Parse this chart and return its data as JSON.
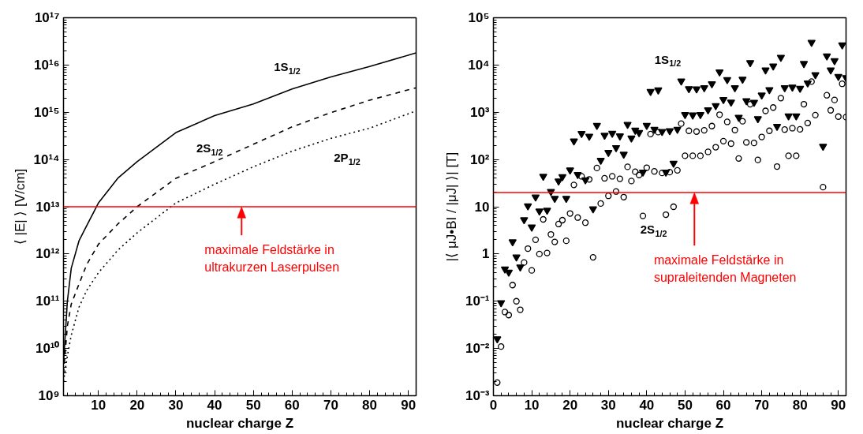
{
  "chart_data": [
    {
      "type": "line",
      "xlabel": "nuclear charge Z",
      "ylabel": "⟨ |E| ⟩ [V/cm]",
      "log": "y",
      "xlim": [
        1,
        92
      ],
      "ylim": [
        1000000000.0,
        1e+17
      ],
      "xticks": [
        10,
        20,
        30,
        40,
        50,
        60,
        70,
        80,
        90
      ],
      "yticks": [
        {
          "value": 1000000000.0,
          "label": "10⁹"
        },
        {
          "value": 10000000000.0,
          "label": "10¹⁰"
        },
        {
          "value": 100000000000.0,
          "label": "10¹¹"
        },
        {
          "value": 1000000000000.0,
          "label": "10¹²"
        },
        {
          "value": 10000000000000.0,
          "label": "10¹³"
        },
        {
          "value": 100000000000000.0,
          "label": "10¹⁴"
        },
        {
          "value": 1000000000000000.0,
          "label": "10¹⁵"
        },
        {
          "value": 1e+16,
          "label": "10¹⁶"
        },
        {
          "value": 1e+17,
          "label": "10¹⁷"
        }
      ],
      "x": [
        1,
        2,
        3,
        5,
        7,
        10,
        15,
        20,
        30,
        40,
        50,
        60,
        70,
        80,
        92
      ],
      "series": [
        {
          "name": "1S$_{1/2}$",
          "color": "#000000",
          "line_style": "solid",
          "values": [
            5000000000.0,
            100000000000.0,
            500000000000.0,
            1900000000000.0,
            4000000000000.0,
            12000000000000.0,
            40000000000000.0,
            90000000000000.0,
            370000000000000.0,
            850000000000000.0,
            1500000000000000.0,
            3100000000000000.0,
            5600000000000000.0,
            9300000000000000.0,
            1.8e+16
          ]
        },
        {
          "name": "2S$_{1/2}$",
          "color": "#000000",
          "line_style": "dashed",
          "values": [
            3000000000.0,
            30000000000.0,
            87000000000.0,
            230000000000.0,
            600000000000.0,
            1600000000000.0,
            4300000000000.0,
            10000000000000.0,
            40000000000000.0,
            90000000000000.0,
            210000000000000.0,
            490000000000000.0,
            980000000000000.0,
            1800000000000000.0,
            3300000000000000.0
          ]
        },
        {
          "name": "2P$_{1/2}$",
          "color": "#000000",
          "line_style": "dotted",
          "values": [
            2000000000.0,
            7000000000.0,
            19000000000.0,
            75000000000.0,
            170000000000.0,
            400000000000.0,
            1200000000000.0,
            2800000000000.0,
            12000000000000.0,
            30000000000000.0,
            70000000000000.0,
            150000000000000.0,
            280000000000000.0,
            460000000000000.0,
            1070000000000000.0
          ]
        }
      ],
      "ref_lines": [
        {
          "axis": "y",
          "value": 10000000000000.0,
          "label": "maximale Feldstärke in\nultrakurzen Laserpulsen",
          "color": "#ff0000"
        }
      ],
      "grid": false
    },
    {
      "type": "scatter",
      "xlabel": "nuclear charge Z",
      "ylabel": "|⟨ μJ•BI / |μJ| ⟩| [T]",
      "log": "y",
      "xlim": [
        0,
        92
      ],
      "ylim": [
        0.001,
        100000.0
      ],
      "xticks": [
        0,
        10,
        20,
        30,
        40,
        50,
        60,
        70,
        80,
        90
      ],
      "yticks": [
        {
          "value": 0.001,
          "label": "10⁻³"
        },
        {
          "value": 0.01,
          "label": "10⁻²"
        },
        {
          "value": 0.1,
          "label": "10⁻¹"
        },
        1,
        10,
        {
          "value": 100,
          "label": "10²"
        },
        {
          "value": 1000,
          "label": "10³"
        },
        {
          "value": 10000,
          "label": "10⁴"
        },
        {
          "value": 100000,
          "label": "10⁵"
        }
      ],
      "series": [
        {
          "name": "1S$_{1/2}$",
          "color": "#000000",
          "marker": "triangle",
          "x": [
            1,
            2,
            3,
            4,
            5,
            6,
            7,
            8,
            9,
            10,
            11,
            12,
            13,
            14,
            15,
            16,
            17,
            18,
            19,
            20,
            21,
            22,
            23,
            24,
            25,
            26,
            27,
            28,
            29,
            30,
            31,
            32,
            33,
            34,
            35,
            36,
            37,
            38,
            39,
            40,
            41,
            42,
            43,
            44,
            45,
            46,
            47,
            48,
            49,
            50,
            51,
            52,
            53,
            54,
            55,
            56,
            57,
            58,
            59,
            60,
            61,
            62,
            63,
            64,
            65,
            66,
            67,
            68,
            69,
            70,
            71,
            72,
            73,
            74,
            75,
            76,
            77,
            78,
            79,
            80,
            81,
            82,
            83,
            84,
            86,
            87,
            88,
            89,
            90,
            91,
            92
          ],
          "values": [
            0.016,
            0.093,
            0.48,
            0.41,
            1.8,
            0.86,
            0.53,
            5.3,
            10.4,
            3.7,
            16,
            8.1,
            44,
            8.4,
            21,
            15,
            35,
            43,
            15,
            60,
            245,
            48,
            355,
            37,
            310,
            9.0,
            525,
            96,
            325,
            141,
            357,
            178,
            314,
            129,
            550,
            283,
            415,
            370,
            54,
            525,
            2750,
            435,
            2950,
            390,
            54,
            405,
            83,
            435,
            4550,
            890,
            3150,
            870,
            3100,
            890,
            3300,
            1120,
            4000,
            1380,
            7100,
            1850,
            4900,
            1630,
            3300,
            780,
            5000,
            1740,
            11200,
            1620,
            730,
            2300,
            7800,
            3000,
            9500,
            500,
            14500,
            3300,
            830,
            3400,
            830,
            3200,
            10700,
            4150,
            30000,
            6200,
            190,
            15500,
            7800,
            12300,
            5700,
            26500,
            5400
          ]
        },
        {
          "name": "2S$_{1/2}$",
          "color": "#000000",
          "marker": "circle",
          "x": [
            1,
            2,
            3,
            4,
            5,
            6,
            7,
            8,
            9,
            10,
            11,
            12,
            13,
            14,
            15,
            16,
            17,
            18,
            19,
            20,
            21,
            22,
            23,
            24,
            25,
            26,
            27,
            28,
            29,
            30,
            31,
            32,
            33,
            34,
            35,
            36,
            37,
            38,
            39,
            40,
            41,
            42,
            43,
            44,
            45,
            46,
            47,
            48,
            49,
            50,
            51,
            52,
            53,
            54,
            55,
            56,
            57,
            58,
            59,
            60,
            61,
            62,
            63,
            64,
            65,
            66,
            67,
            68,
            69,
            70,
            71,
            72,
            73,
            74,
            75,
            76,
            77,
            78,
            79,
            80,
            81,
            82,
            83,
            84,
            86,
            87,
            88,
            89,
            90,
            91,
            92
          ],
          "values": [
            0.0019,
            0.011,
            0.059,
            0.051,
            0.22,
            0.1,
            0.066,
            0.66,
            1.3,
            0.45,
            2.0,
            1.0,
            5.4,
            1.05,
            2.6,
            1.8,
            4.3,
            5.2,
            1.9,
            7.2,
            29,
            5.9,
            44,
            4.6,
            38,
            0.85,
            66,
            11.7,
            40,
            17,
            44,
            21,
            39,
            16,
            70,
            35,
            55,
            47,
            6.4,
            67,
            345,
            56,
            380,
            52,
            6.8,
            54,
            10,
            59,
            575,
            120,
            405,
            120,
            390,
            120,
            415,
            145,
            510,
            182,
            890,
            245,
            625,
            217,
            420,
            105,
            645,
            230,
            1480,
            224,
            98,
            300,
            1070,
            405,
            1260,
            71,
            1990,
            430,
            120,
            460,
            120,
            435,
            1480,
            590,
            4450,
            870,
            26,
            2290,
            1100,
            1820,
            810,
            4000,
            790
          ]
        }
      ],
      "ref_lines": [
        {
          "axis": "y",
          "value": 20,
          "label": "maximale Feldstärke in\nsupraleitenden Magneten",
          "color": "#ff0000"
        }
      ],
      "grid": false
    }
  ]
}
